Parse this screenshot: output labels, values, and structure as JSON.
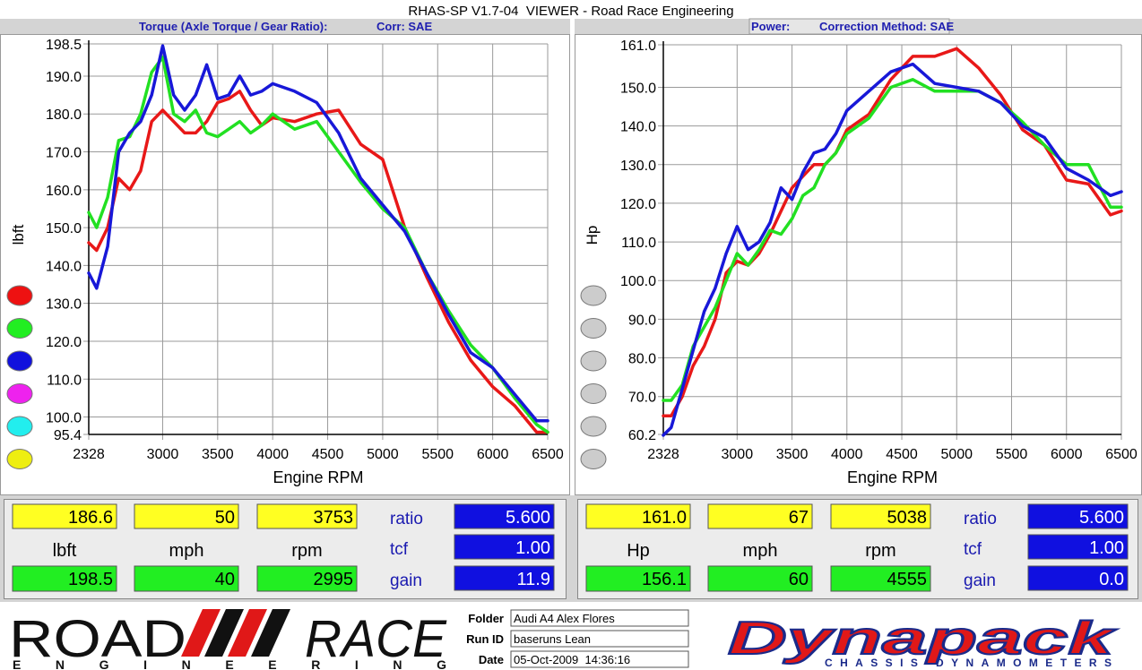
{
  "window": {
    "title": "RHAS-SP V1.7-04  VIEWER - Road Race Engineering"
  },
  "chart_data": [
    {
      "type": "line",
      "title": "Torque (Axle Torque / Gear Ratio):",
      "subtitle": "Corr: SAE",
      "x_label": "Engine RPM",
      "y_label": "lbft",
      "x": [
        2328,
        2400,
        2500,
        2600,
        2700,
        2800,
        2900,
        3000,
        3100,
        3200,
        3300,
        3400,
        3500,
        3600,
        3700,
        3800,
        3900,
        4000,
        4200,
        4400,
        4600,
        4800,
        5000,
        5200,
        5400,
        5600,
        5800,
        6000,
        6200,
        6400,
        6500
      ],
      "xlim": [
        2328,
        6500
      ],
      "xticks": [
        2328,
        3000,
        3500,
        4000,
        4500,
        5000,
        5500,
        6000,
        6500
      ],
      "ylim": [
        95.4,
        198.5
      ],
      "yticks": [
        198.5,
        {
          "value": 190,
          "label": "190.0"
        },
        {
          "value": 180,
          "label": "180.0"
        },
        {
          "value": 170,
          "label": "170.0"
        },
        {
          "value": 160,
          "label": "160.0"
        },
        {
          "value": 150,
          "label": "150.0"
        },
        {
          "value": 140,
          "label": "140.0"
        },
        {
          "value": 130,
          "label": "130.0"
        },
        {
          "value": 120,
          "label": "120.0"
        },
        {
          "value": 110,
          "label": "110.0"
        },
        {
          "value": 100,
          "label": "100.0"
        },
        95.4
      ],
      "grid": true,
      "legend_colors": [
        "#ee1111",
        "#22ee22",
        "#1111dd",
        "#ee22ee",
        "#22eeee",
        "#eeee11"
      ],
      "series": [
        {
          "color": "#e81818",
          "values": [
            146,
            144,
            150,
            163,
            160,
            165,
            178,
            181,
            178,
            175,
            175,
            178,
            183,
            184,
            186,
            181,
            177,
            179,
            178,
            180,
            181,
            172,
            168,
            150,
            137,
            125,
            115,
            108,
            103,
            96,
            96
          ]
        },
        {
          "color": "#22e022",
          "values": [
            154,
            150,
            158,
            173,
            174,
            180,
            191,
            195,
            180,
            178,
            181,
            175,
            174,
            176,
            178,
            175,
            177,
            180,
            176,
            178,
            170,
            162,
            155,
            150,
            138,
            128,
            119,
            113,
            105,
            98,
            96
          ]
        },
        {
          "color": "#1818d8",
          "values": [
            138,
            134,
            145,
            170,
            175,
            178,
            185,
            198,
            185,
            181,
            185,
            193,
            184,
            185,
            190,
            185,
            186,
            188,
            186,
            183,
            175,
            163,
            156,
            149,
            138,
            127,
            117,
            113,
            106,
            99,
            99
          ]
        }
      ]
    },
    {
      "type": "line",
      "title": "Power:",
      "subtitle": "Correction Method: SAE",
      "x_label": "Engine RPM",
      "y_label": "Hp",
      "x": [
        2328,
        2400,
        2500,
        2600,
        2700,
        2800,
        2900,
        3000,
        3100,
        3200,
        3300,
        3400,
        3500,
        3600,
        3700,
        3800,
        3900,
        4000,
        4200,
        4400,
        4600,
        4800,
        5000,
        5200,
        5400,
        5600,
        5800,
        6000,
        6200,
        6400,
        6500
      ],
      "xlim": [
        2328,
        6500
      ],
      "xticks": [
        2328,
        3000,
        3500,
        4000,
        4500,
        5000,
        5500,
        6000,
        6500
      ],
      "ylim": [
        60.2,
        161
      ],
      "yticks": [
        {
          "value": 161,
          "label": "161.0"
        },
        {
          "value": 150,
          "label": "150.0"
        },
        {
          "value": 140,
          "label": "140.0"
        },
        {
          "value": 130,
          "label": "130.0"
        },
        {
          "value": 120,
          "label": "120.0"
        },
        {
          "value": 110,
          "label": "110.0"
        },
        {
          "value": 100,
          "label": "100.0"
        },
        {
          "value": 90,
          "label": "90.0"
        },
        {
          "value": 80,
          "label": "80.0"
        },
        {
          "value": 70,
          "label": "70.0"
        },
        60.2
      ],
      "grid": true,
      "legend_colors": [
        "#cccccc",
        "#cccccc",
        "#cccccc",
        "#cccccc",
        "#cccccc",
        "#cccccc"
      ],
      "series": [
        {
          "color": "#e81818",
          "values": [
            65,
            65,
            70,
            78,
            83,
            90,
            102,
            105,
            104,
            107,
            112,
            118,
            124,
            127,
            130,
            130,
            133,
            139,
            143,
            152,
            158,
            158,
            160,
            155,
            148,
            139,
            135,
            126,
            125,
            117,
            118
          ]
        },
        {
          "color": "#22e022",
          "values": [
            69,
            69,
            73,
            83,
            88,
            93,
            100,
            107,
            104,
            108,
            113,
            112,
            116,
            122,
            124,
            130,
            133,
            138,
            142,
            150,
            152,
            149,
            149,
            149,
            146,
            141,
            135,
            130,
            130,
            119,
            119
          ]
        },
        {
          "color": "#1818d8",
          "values": [
            60,
            62,
            72,
            82,
            92,
            98,
            107,
            114,
            108,
            110,
            115,
            124,
            121,
            128,
            133,
            134,
            138,
            144,
            149,
            154,
            156,
            151,
            150,
            149,
            146,
            140,
            137,
            129,
            126,
            122,
            123
          ]
        }
      ]
    }
  ],
  "readouts": [
    {
      "top": [
        "186.6",
        "50",
        "3753"
      ],
      "units": [
        "lbft",
        "mph",
        "rpm"
      ],
      "bottom": [
        "198.5",
        "40",
        "2995"
      ],
      "params": [
        "ratio",
        "tcf",
        "gain"
      ],
      "param_values": [
        "5.600",
        "1.00",
        "11.9"
      ]
    },
    {
      "top": [
        "161.0",
        "67",
        "5038"
      ],
      "units": [
        "Hp",
        "mph",
        "rpm"
      ],
      "bottom": [
        "156.1",
        "60",
        "4555"
      ],
      "params": [
        "ratio",
        "tcf",
        "gain"
      ],
      "param_values": [
        "5.600",
        "1.00",
        "0.0"
      ]
    }
  ],
  "footer": {
    "logo_left": {
      "word1": "ROAD",
      "word2": "RACE",
      "tagline": "ENGINEERING"
    },
    "fields": [
      {
        "label": "Folder",
        "value": "Audi A4 Alex Flores"
      },
      {
        "label": "Run ID",
        "value": "baseruns Lean"
      },
      {
        "label": "Date",
        "value": "05-Oct-2009  14:36:16"
      }
    ],
    "logo_right": {
      "name": "Dynapack",
      "tagline": "CHASSIS DYNAMOMETERS"
    }
  }
}
